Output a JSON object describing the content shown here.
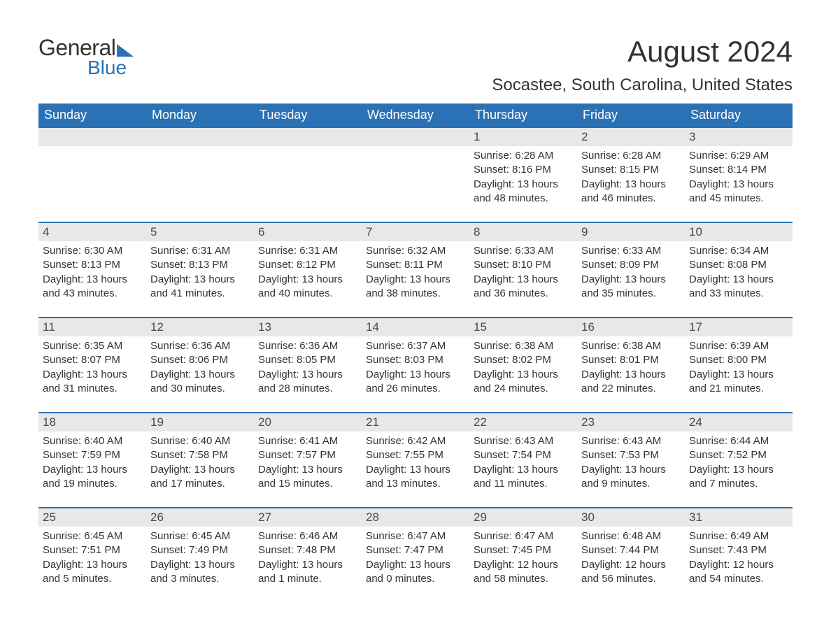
{
  "logo": {
    "text1": "General",
    "text2": "Blue",
    "brand_color": "#2a72b5"
  },
  "title": "August 2024",
  "location": "Socastee, South Carolina, United States",
  "colors": {
    "header_bg": "#2a72b5",
    "header_text": "#ffffff",
    "daynum_bg": "#e8e8e8",
    "body_text": "#333333",
    "page_bg": "#ffffff",
    "row_border": "#2a72b5"
  },
  "typography": {
    "title_fontsize": 42,
    "location_fontsize": 24,
    "weekday_fontsize": 18,
    "daynum_fontsize": 17,
    "body_fontsize": 15
  },
  "weekdays": [
    "Sunday",
    "Monday",
    "Tuesday",
    "Wednesday",
    "Thursday",
    "Friday",
    "Saturday"
  ],
  "calendar": {
    "type": "table",
    "rows": 5,
    "cols": 7,
    "cells": [
      [
        {
          "day": "",
          "sunrise": "",
          "sunset": "",
          "daylight": ""
        },
        {
          "day": "",
          "sunrise": "",
          "sunset": "",
          "daylight": ""
        },
        {
          "day": "",
          "sunrise": "",
          "sunset": "",
          "daylight": ""
        },
        {
          "day": "",
          "sunrise": "",
          "sunset": "",
          "daylight": ""
        },
        {
          "day": "1",
          "sunrise": "Sunrise: 6:28 AM",
          "sunset": "Sunset: 8:16 PM",
          "daylight": "Daylight: 13 hours and 48 minutes."
        },
        {
          "day": "2",
          "sunrise": "Sunrise: 6:28 AM",
          "sunset": "Sunset: 8:15 PM",
          "daylight": "Daylight: 13 hours and 46 minutes."
        },
        {
          "day": "3",
          "sunrise": "Sunrise: 6:29 AM",
          "sunset": "Sunset: 8:14 PM",
          "daylight": "Daylight: 13 hours and 45 minutes."
        }
      ],
      [
        {
          "day": "4",
          "sunrise": "Sunrise: 6:30 AM",
          "sunset": "Sunset: 8:13 PM",
          "daylight": "Daylight: 13 hours and 43 minutes."
        },
        {
          "day": "5",
          "sunrise": "Sunrise: 6:31 AM",
          "sunset": "Sunset: 8:13 PM",
          "daylight": "Daylight: 13 hours and 41 minutes."
        },
        {
          "day": "6",
          "sunrise": "Sunrise: 6:31 AM",
          "sunset": "Sunset: 8:12 PM",
          "daylight": "Daylight: 13 hours and 40 minutes."
        },
        {
          "day": "7",
          "sunrise": "Sunrise: 6:32 AM",
          "sunset": "Sunset: 8:11 PM",
          "daylight": "Daylight: 13 hours and 38 minutes."
        },
        {
          "day": "8",
          "sunrise": "Sunrise: 6:33 AM",
          "sunset": "Sunset: 8:10 PM",
          "daylight": "Daylight: 13 hours and 36 minutes."
        },
        {
          "day": "9",
          "sunrise": "Sunrise: 6:33 AM",
          "sunset": "Sunset: 8:09 PM",
          "daylight": "Daylight: 13 hours and 35 minutes."
        },
        {
          "day": "10",
          "sunrise": "Sunrise: 6:34 AM",
          "sunset": "Sunset: 8:08 PM",
          "daylight": "Daylight: 13 hours and 33 minutes."
        }
      ],
      [
        {
          "day": "11",
          "sunrise": "Sunrise: 6:35 AM",
          "sunset": "Sunset: 8:07 PM",
          "daylight": "Daylight: 13 hours and 31 minutes."
        },
        {
          "day": "12",
          "sunrise": "Sunrise: 6:36 AM",
          "sunset": "Sunset: 8:06 PM",
          "daylight": "Daylight: 13 hours and 30 minutes."
        },
        {
          "day": "13",
          "sunrise": "Sunrise: 6:36 AM",
          "sunset": "Sunset: 8:05 PM",
          "daylight": "Daylight: 13 hours and 28 minutes."
        },
        {
          "day": "14",
          "sunrise": "Sunrise: 6:37 AM",
          "sunset": "Sunset: 8:03 PM",
          "daylight": "Daylight: 13 hours and 26 minutes."
        },
        {
          "day": "15",
          "sunrise": "Sunrise: 6:38 AM",
          "sunset": "Sunset: 8:02 PM",
          "daylight": "Daylight: 13 hours and 24 minutes."
        },
        {
          "day": "16",
          "sunrise": "Sunrise: 6:38 AM",
          "sunset": "Sunset: 8:01 PM",
          "daylight": "Daylight: 13 hours and 22 minutes."
        },
        {
          "day": "17",
          "sunrise": "Sunrise: 6:39 AM",
          "sunset": "Sunset: 8:00 PM",
          "daylight": "Daylight: 13 hours and 21 minutes."
        }
      ],
      [
        {
          "day": "18",
          "sunrise": "Sunrise: 6:40 AM",
          "sunset": "Sunset: 7:59 PM",
          "daylight": "Daylight: 13 hours and 19 minutes."
        },
        {
          "day": "19",
          "sunrise": "Sunrise: 6:40 AM",
          "sunset": "Sunset: 7:58 PM",
          "daylight": "Daylight: 13 hours and 17 minutes."
        },
        {
          "day": "20",
          "sunrise": "Sunrise: 6:41 AM",
          "sunset": "Sunset: 7:57 PM",
          "daylight": "Daylight: 13 hours and 15 minutes."
        },
        {
          "day": "21",
          "sunrise": "Sunrise: 6:42 AM",
          "sunset": "Sunset: 7:55 PM",
          "daylight": "Daylight: 13 hours and 13 minutes."
        },
        {
          "day": "22",
          "sunrise": "Sunrise: 6:43 AM",
          "sunset": "Sunset: 7:54 PM",
          "daylight": "Daylight: 13 hours and 11 minutes."
        },
        {
          "day": "23",
          "sunrise": "Sunrise: 6:43 AM",
          "sunset": "Sunset: 7:53 PM",
          "daylight": "Daylight: 13 hours and 9 minutes."
        },
        {
          "day": "24",
          "sunrise": "Sunrise: 6:44 AM",
          "sunset": "Sunset: 7:52 PM",
          "daylight": "Daylight: 13 hours and 7 minutes."
        }
      ],
      [
        {
          "day": "25",
          "sunrise": "Sunrise: 6:45 AM",
          "sunset": "Sunset: 7:51 PM",
          "daylight": "Daylight: 13 hours and 5 minutes."
        },
        {
          "day": "26",
          "sunrise": "Sunrise: 6:45 AM",
          "sunset": "Sunset: 7:49 PM",
          "daylight": "Daylight: 13 hours and 3 minutes."
        },
        {
          "day": "27",
          "sunrise": "Sunrise: 6:46 AM",
          "sunset": "Sunset: 7:48 PM",
          "daylight": "Daylight: 13 hours and 1 minute."
        },
        {
          "day": "28",
          "sunrise": "Sunrise: 6:47 AM",
          "sunset": "Sunset: 7:47 PM",
          "daylight": "Daylight: 13 hours and 0 minutes."
        },
        {
          "day": "29",
          "sunrise": "Sunrise: 6:47 AM",
          "sunset": "Sunset: 7:45 PM",
          "daylight": "Daylight: 12 hours and 58 minutes."
        },
        {
          "day": "30",
          "sunrise": "Sunrise: 6:48 AM",
          "sunset": "Sunset: 7:44 PM",
          "daylight": "Daylight: 12 hours and 56 minutes."
        },
        {
          "day": "31",
          "sunrise": "Sunrise: 6:49 AM",
          "sunset": "Sunset: 7:43 PM",
          "daylight": "Daylight: 12 hours and 54 minutes."
        }
      ]
    ]
  }
}
